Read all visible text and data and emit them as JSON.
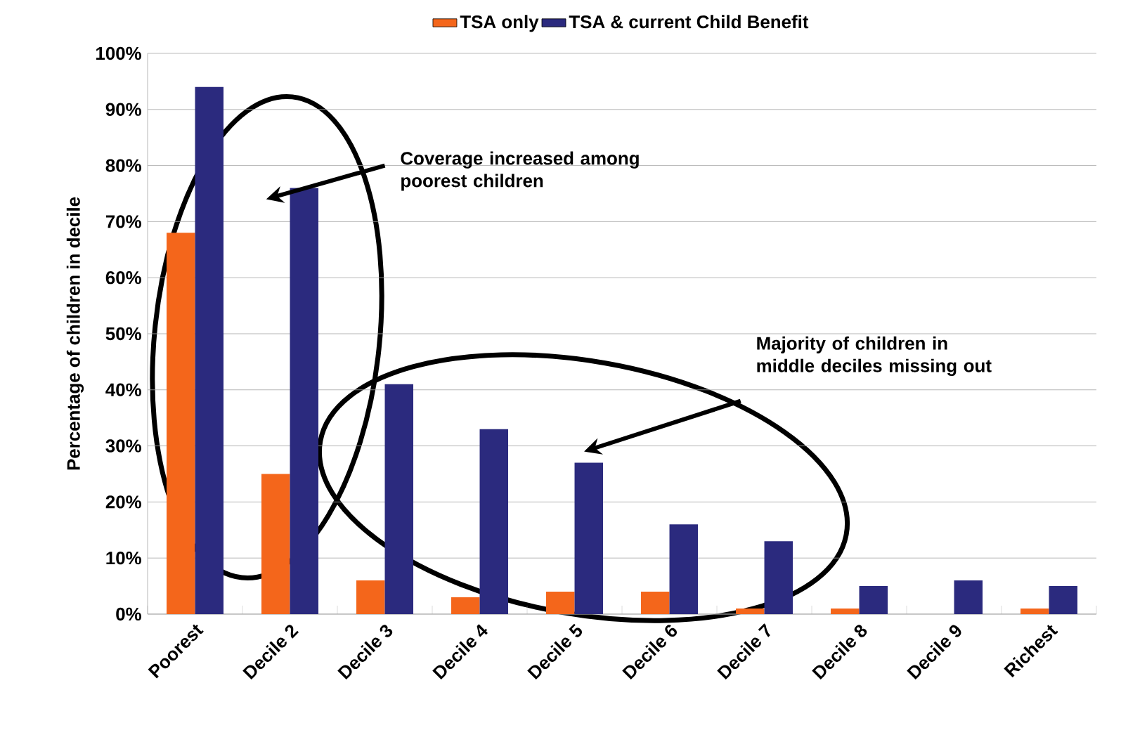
{
  "chart_data": {
    "type": "bar",
    "ylabel": "Percentage of children in decile",
    "categories": [
      "Poorest",
      "Decile 2",
      "Decile 3",
      "Decile 4",
      "Decile 5",
      "Decile 6",
      "Decile 7",
      "Decile 8",
      "Decile 9",
      "Richest"
    ],
    "series": [
      {
        "name": "TSA only",
        "color": "#f4661b",
        "values": [
          68,
          25,
          6,
          3,
          4,
          4,
          1,
          1,
          0,
          1
        ]
      },
      {
        "name": "TSA & current Child Benefit",
        "color": "#2b2a7e",
        "values": [
          94,
          76,
          41,
          33,
          27,
          16,
          13,
          5,
          6,
          5
        ]
      }
    ],
    "ylim": [
      0,
      100
    ],
    "yticks": [
      {
        "value": 0,
        "label": "0%"
      },
      {
        "value": 10,
        "label": "10%"
      },
      {
        "value": 20,
        "label": "20%"
      },
      {
        "value": 30,
        "label": "30%"
      },
      {
        "value": 40,
        "label": "40%"
      },
      {
        "value": 50,
        "label": "50%"
      },
      {
        "value": 60,
        "label": "60%"
      },
      {
        "value": 70,
        "label": "70%"
      },
      {
        "value": 80,
        "label": "80%"
      },
      {
        "value": 90,
        "label": "90%"
      },
      {
        "value": 100,
        "label": "100%"
      }
    ],
    "grid": "y",
    "legend": "top",
    "annotations": [
      "Coverage increased among poorest children",
      "Majority of children in middle deciles missing out"
    ]
  }
}
